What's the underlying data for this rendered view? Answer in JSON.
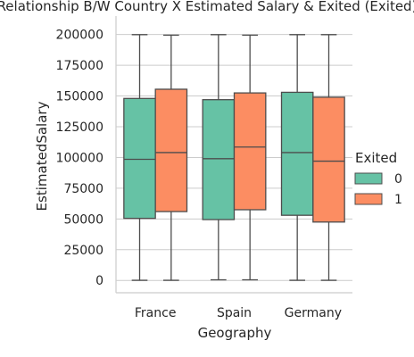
{
  "chart_data": {
    "type": "box",
    "title": "Relationship B/W Country X Estimated Salary & Exited (Exited)",
    "xlabel": "Geography",
    "ylabel": "EstimatedSalary",
    "ylim": [
      -10000,
      215000
    ],
    "yticks": [
      0,
      25000,
      50000,
      75000,
      100000,
      125000,
      150000,
      175000,
      200000
    ],
    "categories": [
      "France",
      "Spain",
      "Germany"
    ],
    "grid": true,
    "legend": {
      "title": "Exited",
      "placement": "right"
    },
    "series": [
      {
        "name": "0",
        "color": "#66c2a5",
        "boxes": [
          {
            "whislo": 100,
            "q1": 50500,
            "med": 98500,
            "q3": 148000,
            "whishi": 199900
          },
          {
            "whislo": 500,
            "q1": 49500,
            "med": 99000,
            "q3": 147000,
            "whishi": 199900
          },
          {
            "whislo": 100,
            "q1": 53000,
            "med": 104000,
            "q3": 153000,
            "whishi": 199900
          }
        ]
      },
      {
        "name": "1",
        "color": "#fc8d62",
        "boxes": [
          {
            "whislo": 100,
            "q1": 56000,
            "med": 104000,
            "q3": 155500,
            "whishi": 199500
          },
          {
            "whislo": 500,
            "q1": 57500,
            "med": 108500,
            "q3": 152500,
            "whishi": 199500
          },
          {
            "whislo": 100,
            "q1": 47500,
            "med": 97000,
            "q3": 149000,
            "whishi": 199900
          }
        ]
      }
    ]
  }
}
